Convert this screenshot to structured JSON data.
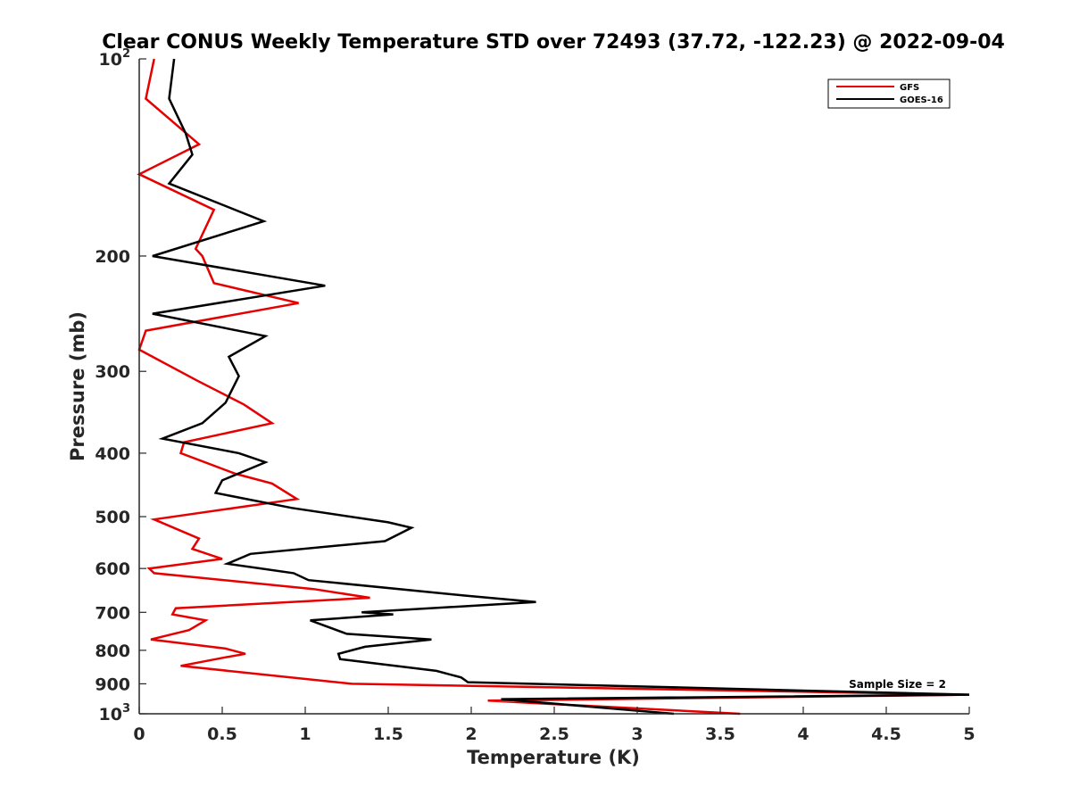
{
  "chart_data": {
    "type": "line",
    "title": "Clear CONUS Weekly Temperature STD over 72493 (37.72, -122.23) @ 2022-09-04",
    "xlabel": "Temperature (K)",
    "ylabel": "Pressure (mb)",
    "xlim": [
      0,
      5
    ],
    "ylim": [
      100,
      1000
    ],
    "y_scale": "log",
    "y_reversed": true,
    "x_ticks": [
      "0",
      "0.5",
      "1",
      "1.5",
      "2",
      "2.5",
      "3",
      "3.5",
      "4",
      "4.5",
      "5"
    ],
    "y_tick_values": [
      100,
      200,
      300,
      400,
      500,
      600,
      700,
      800,
      900,
      1000
    ],
    "y_tick_labels": [
      {
        "base": "10",
        "exp": "2"
      },
      {
        "base": "200"
      },
      {
        "base": "300"
      },
      {
        "base": "400"
      },
      {
        "base": "500"
      },
      {
        "base": "600"
      },
      {
        "base": "700"
      },
      {
        "base": "800"
      },
      {
        "base": "900"
      },
      {
        "base": "10",
        "exp": "3"
      }
    ],
    "legend": {
      "position": "top-right"
    },
    "annotation": "Sample Size = 2",
    "series": [
      {
        "name": "GFS",
        "color": "#e60000",
        "points": [
          [
            0.09,
            100
          ],
          [
            0.04,
            115
          ],
          [
            0.36,
            135
          ],
          [
            0.0,
            150
          ],
          [
            0.45,
            170
          ],
          [
            0.34,
            195
          ],
          [
            0.38,
            200
          ],
          [
            0.45,
            220
          ],
          [
            0.96,
            236
          ],
          [
            0.04,
            260
          ],
          [
            0.0,
            278
          ],
          [
            0.35,
            310
          ],
          [
            0.63,
            337
          ],
          [
            0.8,
            360
          ],
          [
            0.27,
            385
          ],
          [
            0.25,
            400
          ],
          [
            0.58,
            430
          ],
          [
            0.8,
            445
          ],
          [
            0.95,
            470
          ],
          [
            0.09,
            505
          ],
          [
            0.36,
            540
          ],
          [
            0.32,
            560
          ],
          [
            0.5,
            580
          ],
          [
            0.06,
            600
          ],
          [
            0.09,
            610
          ],
          [
            1.05,
            645
          ],
          [
            1.39,
            665
          ],
          [
            0.22,
            690
          ],
          [
            0.2,
            705
          ],
          [
            0.4,
            720
          ],
          [
            0.3,
            745
          ],
          [
            0.07,
            770
          ],
          [
            0.52,
            795
          ],
          [
            0.64,
            810
          ],
          [
            0.52,
            820
          ],
          [
            0.25,
            845
          ],
          [
            1.28,
            900
          ],
          [
            5.0,
            935
          ],
          [
            2.1,
            955
          ],
          [
            3.62,
            1000
          ]
        ]
      },
      {
        "name": "GOES-16",
        "color": "#000000",
        "points": [
          [
            0.21,
            100
          ],
          [
            0.18,
            115
          ],
          [
            0.28,
            130
          ],
          [
            0.32,
            140
          ],
          [
            0.18,
            155
          ],
          [
            0.75,
            177
          ],
          [
            0.08,
            200
          ],
          [
            1.12,
            222
          ],
          [
            0.08,
            245
          ],
          [
            0.76,
            265
          ],
          [
            0.54,
            285
          ],
          [
            0.6,
            305
          ],
          [
            0.52,
            335
          ],
          [
            0.38,
            360
          ],
          [
            0.14,
            380
          ],
          [
            0.6,
            400
          ],
          [
            0.76,
            413
          ],
          [
            0.5,
            440
          ],
          [
            0.46,
            460
          ],
          [
            0.92,
            485
          ],
          [
            1.5,
            510
          ],
          [
            1.64,
            520
          ],
          [
            1.48,
            545
          ],
          [
            0.67,
            570
          ],
          [
            0.53,
            590
          ],
          [
            0.93,
            610
          ],
          [
            1.02,
            625
          ],
          [
            1.96,
            660
          ],
          [
            2.39,
            675
          ],
          [
            1.34,
            700
          ],
          [
            1.53,
            705
          ],
          [
            1.03,
            720
          ],
          [
            1.25,
            755
          ],
          [
            1.76,
            770
          ],
          [
            1.36,
            790
          ],
          [
            1.2,
            810
          ],
          [
            1.21,
            825
          ],
          [
            1.79,
            860
          ],
          [
            1.94,
            880
          ],
          [
            1.98,
            895
          ],
          [
            5.0,
            935
          ],
          [
            2.18,
            950
          ],
          [
            3.22,
            1000
          ]
        ]
      }
    ]
  }
}
